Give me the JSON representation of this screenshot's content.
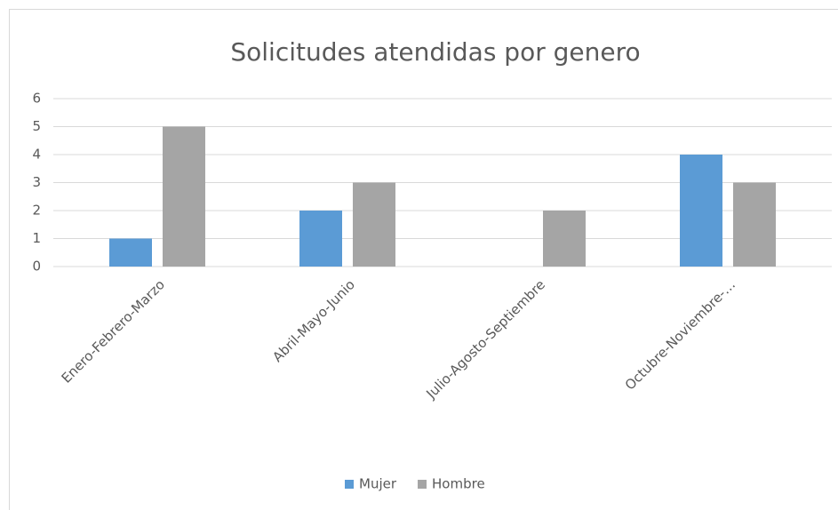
{
  "chart_data": {
    "type": "bar",
    "title": "Solicitudes atendidas por genero",
    "categories": [
      "Enero-Febrero-Marzo",
      "Abril-Mayo-Junio",
      "Julio-Agosto-Septiembre",
      "Octubre-Noviembre-…"
    ],
    "series": [
      {
        "name": "Mujer",
        "color": "#5b9bd5",
        "values": [
          1,
          2,
          0,
          4
        ]
      },
      {
        "name": "Hombre",
        "color": "#a5a5a5",
        "values": [
          5,
          3,
          2,
          3
        ]
      }
    ],
    "ylim": [
      0,
      6
    ],
    "yticks": [
      0,
      1,
      2,
      3,
      4,
      5,
      6
    ],
    "grid": true,
    "legend": "bottom"
  }
}
